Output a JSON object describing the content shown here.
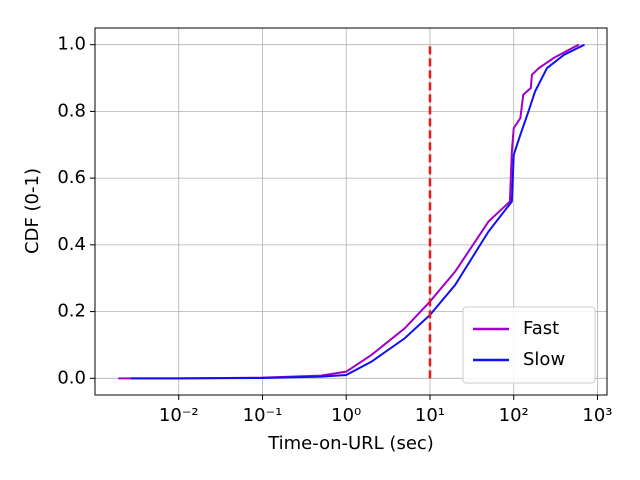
{
  "chart_data": {
    "type": "line",
    "xlabel": "Time-on-URL (sec)",
    "ylabel": "CDF (0-1)",
    "xscale": "log",
    "grid": true,
    "legend": "lower right",
    "xlim": [
      0.001,
      1300
    ],
    "ylim": [
      -0.05,
      1.05
    ],
    "xticks": [
      {
        "value": 0.01,
        "label": "10⁻²"
      },
      {
        "value": 0.1,
        "label": "10⁻¹"
      },
      {
        "value": 1,
        "label": "10⁰"
      },
      {
        "value": 10,
        "label": "10¹"
      },
      {
        "value": 100,
        "label": "10²"
      },
      {
        "value": 1000,
        "label": "10³"
      }
    ],
    "yticks": [
      {
        "value": 0,
        "label": "0.0"
      },
      0.2,
      0.4,
      0.6,
      0.8,
      {
        "value": 1,
        "label": "1.0"
      }
    ],
    "reference_line": {
      "x": 10,
      "color": "#e41a1c"
    },
    "series": [
      {
        "name": "Fast",
        "color": "#a000c8",
        "x": [
          0.0019,
          0.01,
          0.1,
          0.5,
          1,
          2,
          5,
          10,
          20,
          50,
          90,
          95,
          100,
          120,
          130,
          160,
          165,
          200,
          300,
          500,
          600
        ],
        "values": [
          0,
          0,
          0.002,
          0.008,
          0.02,
          0.07,
          0.15,
          0.23,
          0.32,
          0.47,
          0.53,
          0.68,
          0.75,
          0.78,
          0.85,
          0.87,
          0.91,
          0.93,
          0.96,
          0.99,
          1.0
        ]
      },
      {
        "name": "Slow",
        "color": "#1010f0",
        "x": [
          0.0027,
          0.01,
          0.1,
          0.5,
          1,
          2,
          5,
          10,
          20,
          50,
          95,
          100,
          120,
          150,
          180,
          250,
          400,
          700
        ],
        "values": [
          0,
          0,
          0.001,
          0.005,
          0.01,
          0.05,
          0.12,
          0.19,
          0.28,
          0.44,
          0.53,
          0.67,
          0.73,
          0.8,
          0.86,
          0.93,
          0.97,
          1.0
        ]
      }
    ]
  }
}
